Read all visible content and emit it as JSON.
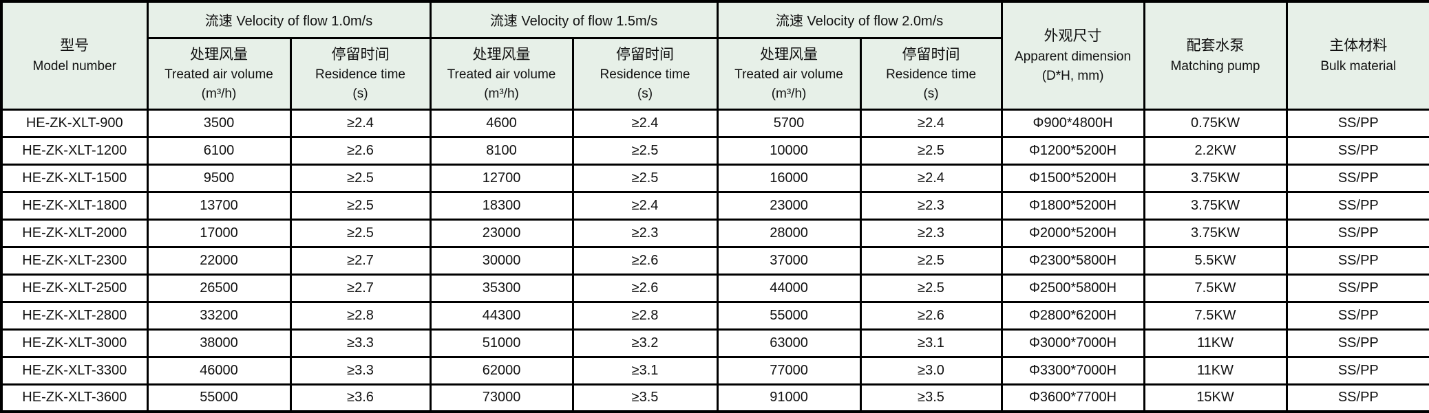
{
  "colors": {
    "header_bg": "#e7f0e8",
    "border": "#000000",
    "text": "#111111",
    "cell_bg": "#ffffff"
  },
  "header": {
    "model_zh": "型号",
    "model_en": "Model number",
    "groups": [
      "流速 Velocity of flow 1.0m/s",
      "流速 Velocity of flow 1.5m/s",
      "流速 Velocity of flow 2.0m/s"
    ],
    "air_zh": "处理风量",
    "air_en": "Treated air volume",
    "air_unit": "(m³/h)",
    "res_zh": "停留时间",
    "res_en": "Residence time",
    "res_unit": "(s)",
    "dim_zh": "外观尺寸",
    "dim_en": "Apparent dimension",
    "dim_unit": "(D*H, mm)",
    "pump_zh": "配套水泵",
    "pump_en": "Matching pump",
    "material_zh": "主体材料",
    "material_en": "Bulk material"
  },
  "chart_data": {
    "type": "table",
    "title": "Spray tower specification table",
    "column_keys": [
      "model",
      "v10_air",
      "v10_res",
      "v15_air",
      "v15_res",
      "v20_air",
      "v20_res",
      "dim",
      "pump",
      "material"
    ],
    "column_labels": [
      "型号 Model number",
      "流速 1.0m/s 处理风量 Treated air volume (m³/h)",
      "流速 1.0m/s 停留时间 Residence time (s)",
      "流速 1.5m/s 处理风量 Treated air volume (m³/h)",
      "流速 1.5m/s 停留时间 Residence time (s)",
      "流速 2.0m/s 处理风量 Treated air volume (m³/h)",
      "流速 2.0m/s 停留时间 Residence time (s)",
      "外观尺寸 Apparent dimension (D*H, mm)",
      "配套水泵 Matching pump",
      "主体材料 Bulk material"
    ],
    "rows": [
      {
        "model": "HE-ZK-XLT-900",
        "v10_air": "3500",
        "v10_res": "≥2.4",
        "v15_air": "4600",
        "v15_res": "≥2.4",
        "v20_air": "5700",
        "v20_res": "≥2.4",
        "dim": "Φ900*4800H",
        "pump": "0.75KW",
        "material": "SS/PP"
      },
      {
        "model": "HE-ZK-XLT-1200",
        "v10_air": "6100",
        "v10_res": "≥2.6",
        "v15_air": "8100",
        "v15_res": "≥2.5",
        "v20_air": "10000",
        "v20_res": "≥2.5",
        "dim": "Φ1200*5200H",
        "pump": "2.2KW",
        "material": "SS/PP"
      },
      {
        "model": "HE-ZK-XLT-1500",
        "v10_air": "9500",
        "v10_res": "≥2.5",
        "v15_air": "12700",
        "v15_res": "≥2.5",
        "v20_air": "16000",
        "v20_res": "≥2.4",
        "dim": "Φ1500*5200H",
        "pump": "3.75KW",
        "material": "SS/PP"
      },
      {
        "model": "HE-ZK-XLT-1800",
        "v10_air": "13700",
        "v10_res": "≥2.5",
        "v15_air": "18300",
        "v15_res": "≥2.4",
        "v20_air": "23000",
        "v20_res": "≥2.3",
        "dim": "Φ1800*5200H",
        "pump": "3.75KW",
        "material": "SS/PP"
      },
      {
        "model": "HE-ZK-XLT-2000",
        "v10_air": "17000",
        "v10_res": "≥2.5",
        "v15_air": "23000",
        "v15_res": "≥2.3",
        "v20_air": "28000",
        "v20_res": "≥2.3",
        "dim": "Φ2000*5200H",
        "pump": "3.75KW",
        "material": "SS/PP"
      },
      {
        "model": "HE-ZK-XLT-2300",
        "v10_air": "22000",
        "v10_res": "≥2.7",
        "v15_air": "30000",
        "v15_res": "≥2.6",
        "v20_air": "37000",
        "v20_res": "≥2.5",
        "dim": "Φ2300*5800H",
        "pump": "5.5KW",
        "material": "SS/PP"
      },
      {
        "model": "HE-ZK-XLT-2500",
        "v10_air": "26500",
        "v10_res": "≥2.7",
        "v15_air": "35300",
        "v15_res": "≥2.6",
        "v20_air": "44000",
        "v20_res": "≥2.5",
        "dim": "Φ2500*5800H",
        "pump": "7.5KW",
        "material": "SS/PP"
      },
      {
        "model": "HE-ZK-XLT-2800",
        "v10_air": "33200",
        "v10_res": "≥2.8",
        "v15_air": "44300",
        "v15_res": "≥2.8",
        "v20_air": "55000",
        "v20_res": "≥2.6",
        "dim": "Φ2800*6200H",
        "pump": "7.5KW",
        "material": "SS/PP"
      },
      {
        "model": "HE-ZK-XLT-3000",
        "v10_air": "38000",
        "v10_res": "≥3.3",
        "v15_air": "51000",
        "v15_res": "≥3.2",
        "v20_air": "63000",
        "v20_res": "≥3.1",
        "dim": "Φ3000*7000H",
        "pump": "11KW",
        "material": "SS/PP"
      },
      {
        "model": "HE-ZK-XLT-3300",
        "v10_air": "46000",
        "v10_res": "≥3.3",
        "v15_air": "62000",
        "v15_res": "≥3.1",
        "v20_air": "77000",
        "v20_res": "≥3.0",
        "dim": "Φ3300*7000H",
        "pump": "11KW",
        "material": "SS/PP"
      },
      {
        "model": "HE-ZK-XLT-3600",
        "v10_air": "55000",
        "v10_res": "≥3.6",
        "v15_air": "73000",
        "v15_res": "≥3.5",
        "v20_air": "91000",
        "v20_res": "≥3.5",
        "dim": "Φ3600*7700H",
        "pump": "15KW",
        "material": "SS/PP"
      }
    ]
  }
}
